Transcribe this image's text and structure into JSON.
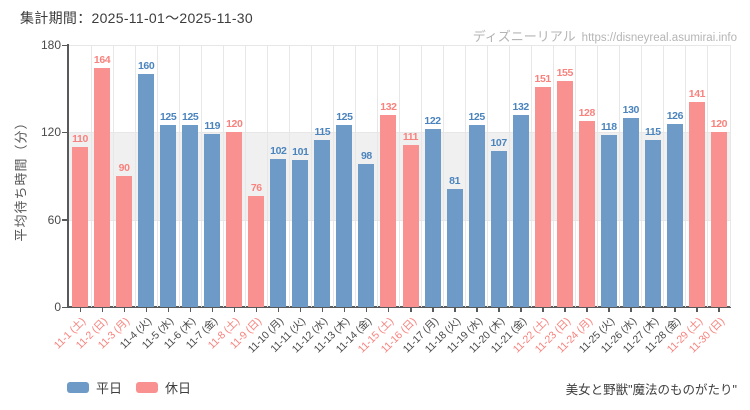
{
  "header": {
    "title": "集計期間：2025-11-01～2025-11-30"
  },
  "watermark": {
    "brand": "ディズニーリアル",
    "url": "https://disneyreal.asumirai.info"
  },
  "footer": {
    "attraction": "美女と野獣\"魔法のものがたり\""
  },
  "colors": {
    "weekday_bar": "#6d9ac7",
    "holiday_bar": "#f99191",
    "weekday_label": "#4b84bd",
    "holiday_label": "#f8827d",
    "weekday_tick": "#4a4a4a",
    "holiday_tick": "#f8827d",
    "axis": "#58595b",
    "grid": "#e7e7e7",
    "band": "#f0f0f1"
  },
  "chart_data": {
    "type": "bar",
    "title": "集計期間：2025-11-01～2025-11-30",
    "xlabel": "",
    "ylabel": "平均待ち時間（分）",
    "ylim": [
      0,
      180
    ],
    "yticks": [
      0,
      60,
      120,
      180
    ],
    "shaded_band": [
      60,
      120
    ],
    "grid": true,
    "legend_position": "bottom-left",
    "legend": [
      {
        "label": "平日",
        "type": "weekday",
        "color": "#6d9ac7"
      },
      {
        "label": "休日",
        "type": "holiday",
        "color": "#f99191"
      }
    ],
    "points": [
      {
        "label": "11-1 (土)",
        "value": 110,
        "day": "holiday"
      },
      {
        "label": "11-2 (日)",
        "value": 164,
        "day": "holiday"
      },
      {
        "label": "11-3 (月)",
        "value": 90,
        "day": "holiday"
      },
      {
        "label": "11-4 (火)",
        "value": 160,
        "day": "weekday"
      },
      {
        "label": "11-5 (水)",
        "value": 125,
        "day": "weekday"
      },
      {
        "label": "11-6 (木)",
        "value": 125,
        "day": "weekday"
      },
      {
        "label": "11-7 (金)",
        "value": 119,
        "day": "weekday"
      },
      {
        "label": "11-8 (土)",
        "value": 120,
        "day": "holiday"
      },
      {
        "label": "11-9 (日)",
        "value": 76,
        "day": "holiday"
      },
      {
        "label": "11-10 (月)",
        "value": 102,
        "day": "weekday"
      },
      {
        "label": "11-11 (火)",
        "value": 101,
        "day": "weekday"
      },
      {
        "label": "11-12 (水)",
        "value": 115,
        "day": "weekday"
      },
      {
        "label": "11-13 (木)",
        "value": 125,
        "day": "weekday"
      },
      {
        "label": "11-14 (金)",
        "value": 98,
        "day": "weekday"
      },
      {
        "label": "11-15 (土)",
        "value": 132,
        "day": "holiday"
      },
      {
        "label": "11-16 (日)",
        "value": 111,
        "day": "holiday"
      },
      {
        "label": "11-17 (月)",
        "value": 122,
        "day": "weekday"
      },
      {
        "label": "11-18 (火)",
        "value": 81,
        "day": "weekday"
      },
      {
        "label": "11-19 (水)",
        "value": 125,
        "day": "weekday"
      },
      {
        "label": "11-20 (木)",
        "value": 107,
        "day": "weekday"
      },
      {
        "label": "11-21 (金)",
        "value": 132,
        "day": "weekday"
      },
      {
        "label": "11-22 (土)",
        "value": 151,
        "day": "holiday"
      },
      {
        "label": "11-23 (日)",
        "value": 155,
        "day": "holiday"
      },
      {
        "label": "11-24 (月)",
        "value": 128,
        "day": "holiday"
      },
      {
        "label": "11-25 (火)",
        "value": 118,
        "day": "weekday"
      },
      {
        "label": "11-26 (水)",
        "value": 130,
        "day": "weekday"
      },
      {
        "label": "11-27 (木)",
        "value": 115,
        "day": "weekday"
      },
      {
        "label": "11-28 (金)",
        "value": 126,
        "day": "weekday"
      },
      {
        "label": "11-29 (土)",
        "value": 141,
        "day": "holiday"
      },
      {
        "label": "11-30 (日)",
        "value": 120,
        "day": "holiday"
      }
    ]
  }
}
